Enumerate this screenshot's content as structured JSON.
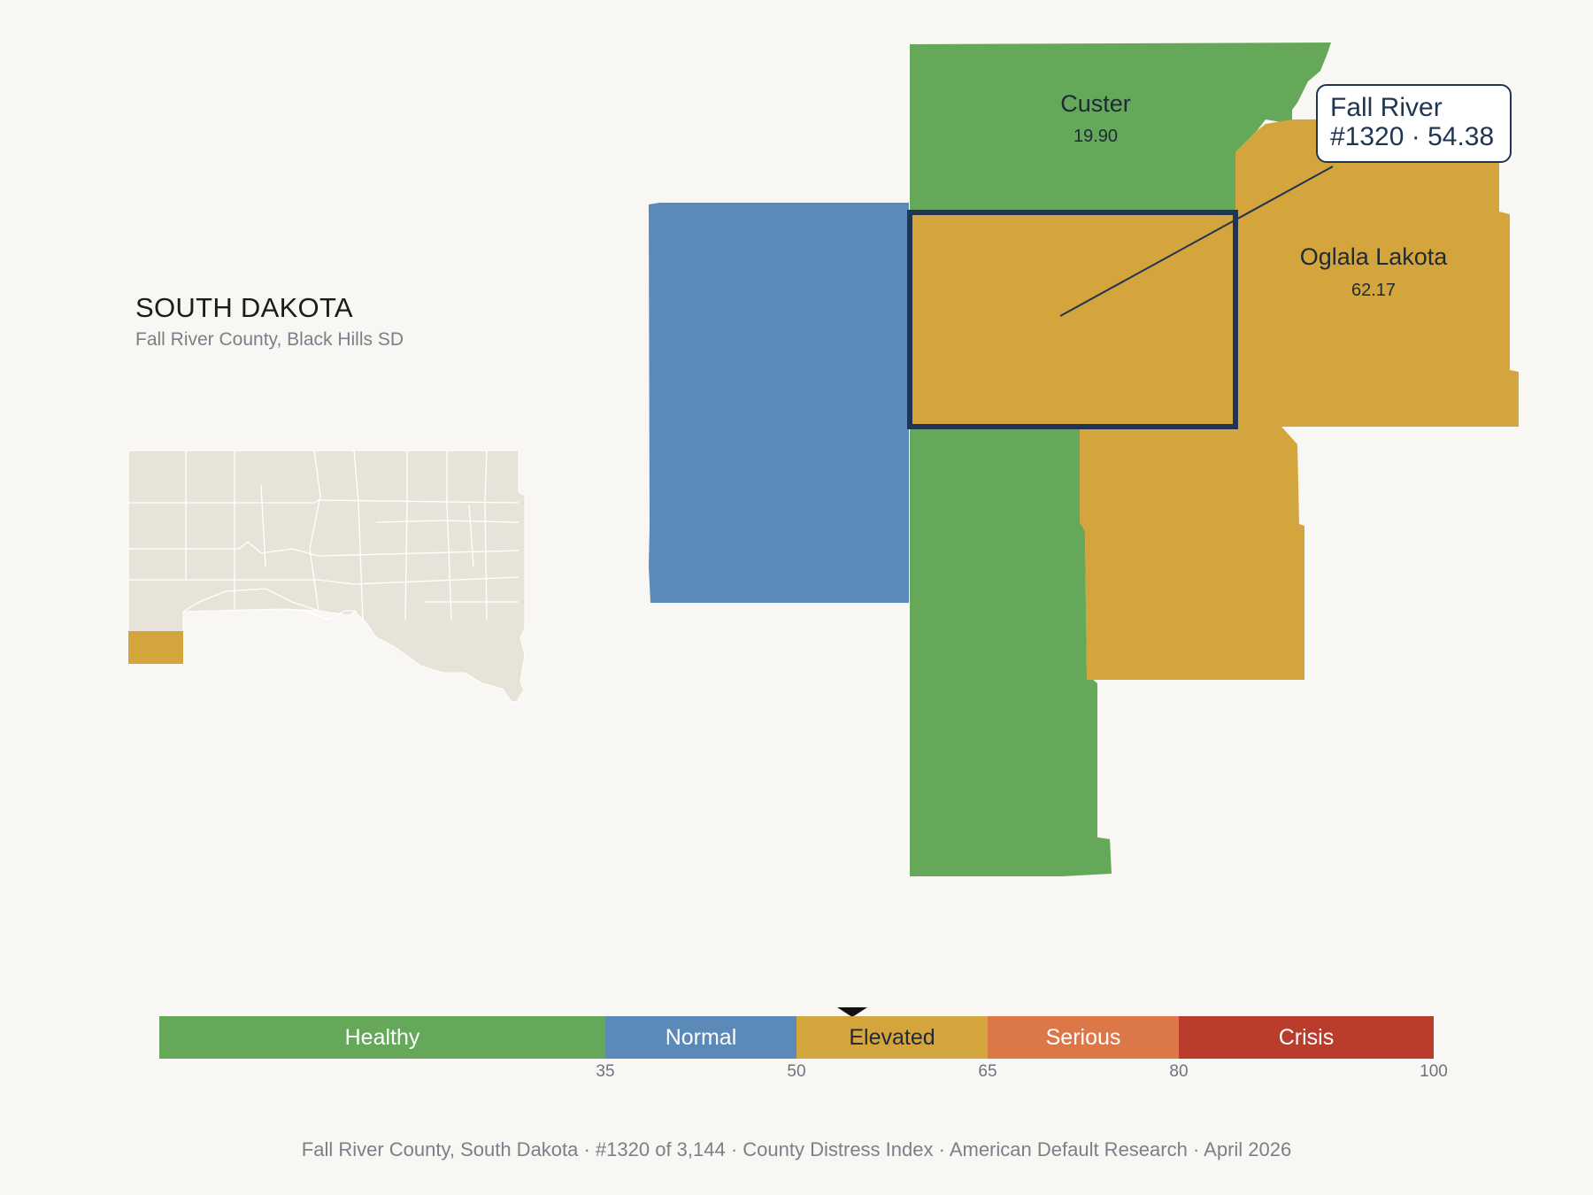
{
  "state": {
    "name": "SOUTH DAKOTA",
    "subtitle": "Fall River County, Black Hills SD"
  },
  "colors": {
    "healthy": "#66a85a",
    "normal": "#5b8ab8",
    "elevated": "#d3a53c",
    "serious": "#dc7848",
    "crisis": "#b93c2c",
    "inset_fill": "#e8e3d8",
    "highlight_outline": "#1f3552",
    "background": "#f9f7f3"
  },
  "counties": [
    {
      "id": "custer",
      "name": "Custer",
      "score": "19.90",
      "band": "healthy"
    },
    {
      "id": "oglala-lakota",
      "name": "Oglala Lakota",
      "score": "62.17",
      "band": "elevated"
    },
    {
      "id": "fall-river",
      "name": "Fall River",
      "score": "54.38",
      "band": "elevated",
      "highlighted": true
    },
    {
      "id": "west-neighbor",
      "band": "normal"
    },
    {
      "id": "south-neighbor",
      "band": "healthy"
    },
    {
      "id": "southeast-neighbor",
      "band": "elevated"
    }
  ],
  "callout": {
    "line1": "Fall River",
    "line2": "#1320 · 54.38"
  },
  "legend": {
    "bands": [
      {
        "label": "Healthy",
        "from": 0,
        "to": 35
      },
      {
        "label": "Normal",
        "from": 35,
        "to": 50
      },
      {
        "label": "Elevated",
        "from": 50,
        "to": 65
      },
      {
        "label": "Serious",
        "from": 65,
        "to": 80
      },
      {
        "label": "Crisis",
        "from": 80,
        "to": 100
      }
    ],
    "ticks": [
      "35",
      "50",
      "65",
      "80",
      "100"
    ],
    "marker_value": 54.38
  },
  "footer": "Fall River County, South Dakota  ·  #1320 of 3,144  ·  County Distress Index  ·  American Default Research  ·  April 2026"
}
